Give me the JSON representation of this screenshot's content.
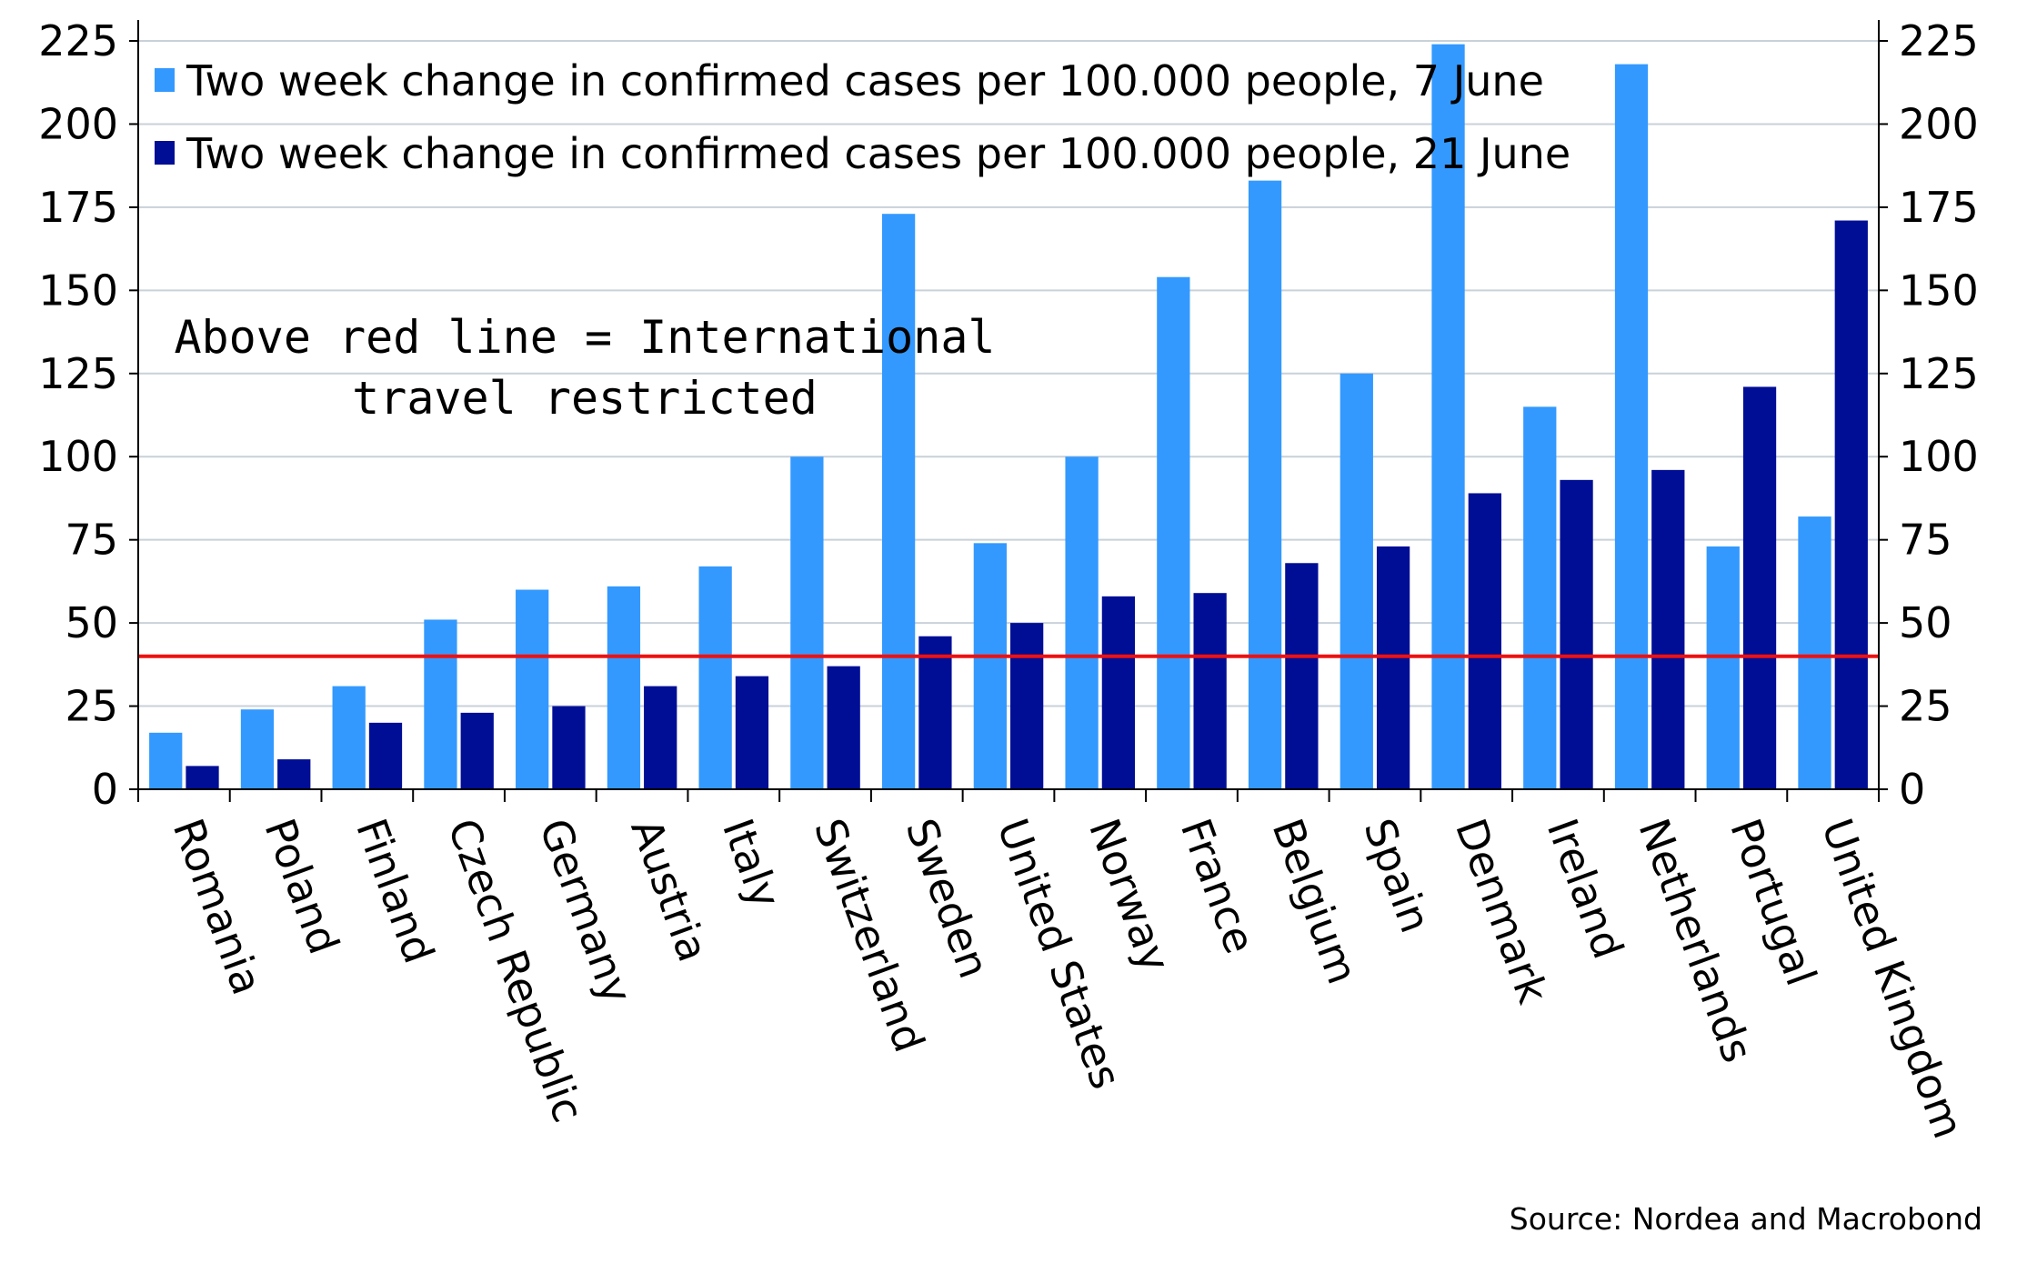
{
  "chart_data": {
    "type": "bar",
    "categories": [
      "Romania",
      "Poland",
      "Finland",
      "Czech Republic",
      "Germany",
      "Austria",
      "Italy",
      "Switzerland",
      "Sweden",
      "United States",
      "Norway",
      "France",
      "Belgium",
      "Spain",
      "Denmark",
      "Ireland",
      "Netherlands",
      "Portugal",
      "United Kingdom"
    ],
    "series": [
      {
        "name": "Two week change in confirmed cases per 100.000 people, 7 June",
        "color": "#3399ff",
        "values": [
          17,
          24,
          31,
          51,
          60,
          61,
          67,
          100,
          173,
          74,
          100,
          154,
          183,
          125,
          224,
          115,
          218,
          73,
          82
        ]
      },
      {
        "name": "Two week change in confirmed cases per 100.000 people, 21 June",
        "color": "#000e96",
        "values": [
          7,
          9,
          20,
          23,
          25,
          31,
          34,
          37,
          46,
          50,
          58,
          59,
          68,
          73,
          89,
          93,
          96,
          121,
          171
        ]
      }
    ],
    "ylim": [
      0,
      225
    ],
    "yticks": [
      "0",
      "25",
      "50",
      "75",
      "100",
      "125",
      "150",
      "175",
      "200",
      "225"
    ],
    "y_axis_both_sides": true,
    "grid": true,
    "reference_line": {
      "value": 40,
      "color": "#ee1111"
    },
    "annotation": [
      "Above red line = International",
      "travel restricted"
    ],
    "legend_position": "top-left",
    "source": "Source: Nordea and Macrobond"
  }
}
